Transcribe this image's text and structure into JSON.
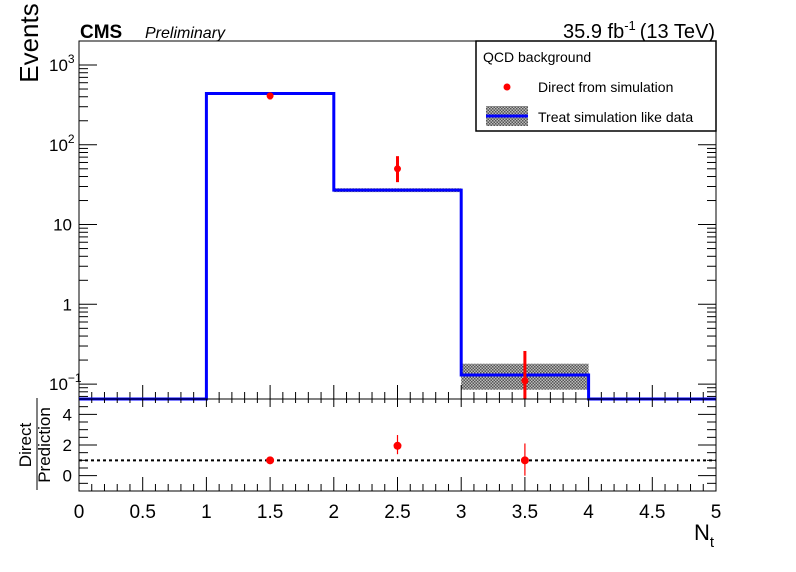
{
  "header": {
    "experiment": "CMS",
    "status": "Preliminary",
    "lumi_value": "35.9 fb",
    "lumi_exp": "-1",
    "energy": "(13 TeV)"
  },
  "legend": {
    "title": "QCD background",
    "entries": [
      "Direct from simulation",
      "Treat simulation like data"
    ]
  },
  "colors": {
    "simulation": "#ff0000",
    "prediction_line": "#0000ff",
    "band": "#777777",
    "axes": "#000000"
  },
  "chart_data": [
    {
      "type": "line",
      "panel": "main",
      "ylabel": "Events",
      "yscale": "log",
      "ylim": [
        0.065,
        2000
      ],
      "xlim": [
        0,
        5
      ],
      "y_tick_labels": [
        {
          "value": 1000,
          "base": "10",
          "exp": "3"
        },
        {
          "value": 100,
          "base": "10",
          "exp": "2"
        },
        {
          "value": 10,
          "base": "10",
          "exp": ""
        },
        {
          "value": 1,
          "base": "1",
          "exp": ""
        },
        {
          "value": 0.1,
          "base": "10",
          "exp": "−1"
        }
      ],
      "series": [
        {
          "name": "Treat simulation like data",
          "kind": "step-histogram",
          "bins": [
            [
              0,
              1
            ],
            [
              1,
              2
            ],
            [
              2,
              3
            ],
            [
              3,
              4
            ],
            [
              4,
              5
            ]
          ],
          "values": [
            0.065,
            440,
            27,
            0.13,
            0.065
          ],
          "band_low": [
            null,
            430,
            25.5,
            0.085,
            null
          ],
          "band_high": [
            null,
            450,
            28.5,
            0.18,
            null
          ]
        },
        {
          "name": "Direct from simulation",
          "kind": "points",
          "x": [
            1.5,
            2.5,
            3.5
          ],
          "y": [
            410,
            50,
            0.11
          ],
          "yerr_low": [
            370,
            34,
            0.065
          ],
          "yerr_high": [
            450,
            72,
            0.26
          ]
        }
      ]
    },
    {
      "type": "scatter",
      "panel": "ratio",
      "ylabel_num": "Direct",
      "ylabel_den": "Prediction",
      "ylim": [
        -1,
        5
      ],
      "yticks": [
        0,
        2,
        4
      ],
      "reference_line": 1,
      "xlabel_main": "N",
      "xlabel_sub": "t",
      "xlim": [
        0,
        5
      ],
      "xticks": [
        "0",
        "0.5",
        "1",
        "1.5",
        "2",
        "2.5",
        "3",
        "3.5",
        "4",
        "4.5",
        "5"
      ],
      "x": [
        1.5,
        2.5,
        3.5
      ],
      "y": [
        1.0,
        1.95,
        1.0
      ],
      "yerr_low": [
        0.85,
        1.4,
        0.0
      ],
      "yerr_high": [
        1.15,
        2.65,
        2.1
      ]
    }
  ]
}
